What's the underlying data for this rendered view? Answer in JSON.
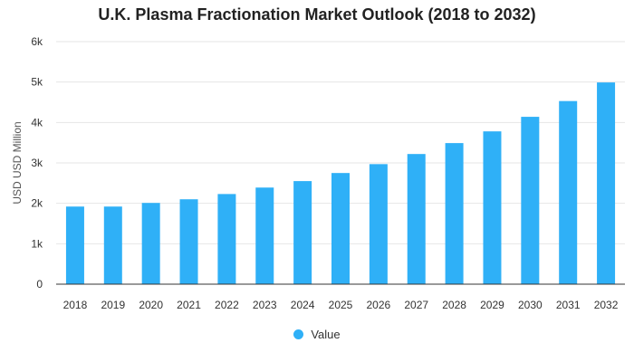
{
  "chart_data": {
    "type": "bar",
    "title": "U.K. Plasma Fractionation Market Outlook (2018 to 2032)",
    "xlabel": "",
    "ylabel": "USD USD Million",
    "categories": [
      "2018",
      "2019",
      "2020",
      "2021",
      "2022",
      "2023",
      "2024",
      "2025",
      "2026",
      "2027",
      "2028",
      "2029",
      "2030",
      "2031",
      "2032"
    ],
    "series": [
      {
        "name": "Value",
        "values": [
          1920,
          1920,
          2010,
          2100,
          2230,
          2390,
          2550,
          2750,
          2970,
          3220,
          3490,
          3780,
          4140,
          4530,
          4990
        ]
      }
    ],
    "ylim": [
      0,
      6000
    ],
    "yticks": [
      0,
      1000,
      2000,
      3000,
      4000,
      5000,
      6000
    ],
    "ytick_labels": [
      "0",
      "1k",
      "2k",
      "3k",
      "4k",
      "5k",
      "6k"
    ],
    "grid": true,
    "legend_position": "bottom-center",
    "colors": {
      "bar": "#2fb0f7",
      "grid": "#e6e6e6",
      "axis": "#333333"
    }
  }
}
